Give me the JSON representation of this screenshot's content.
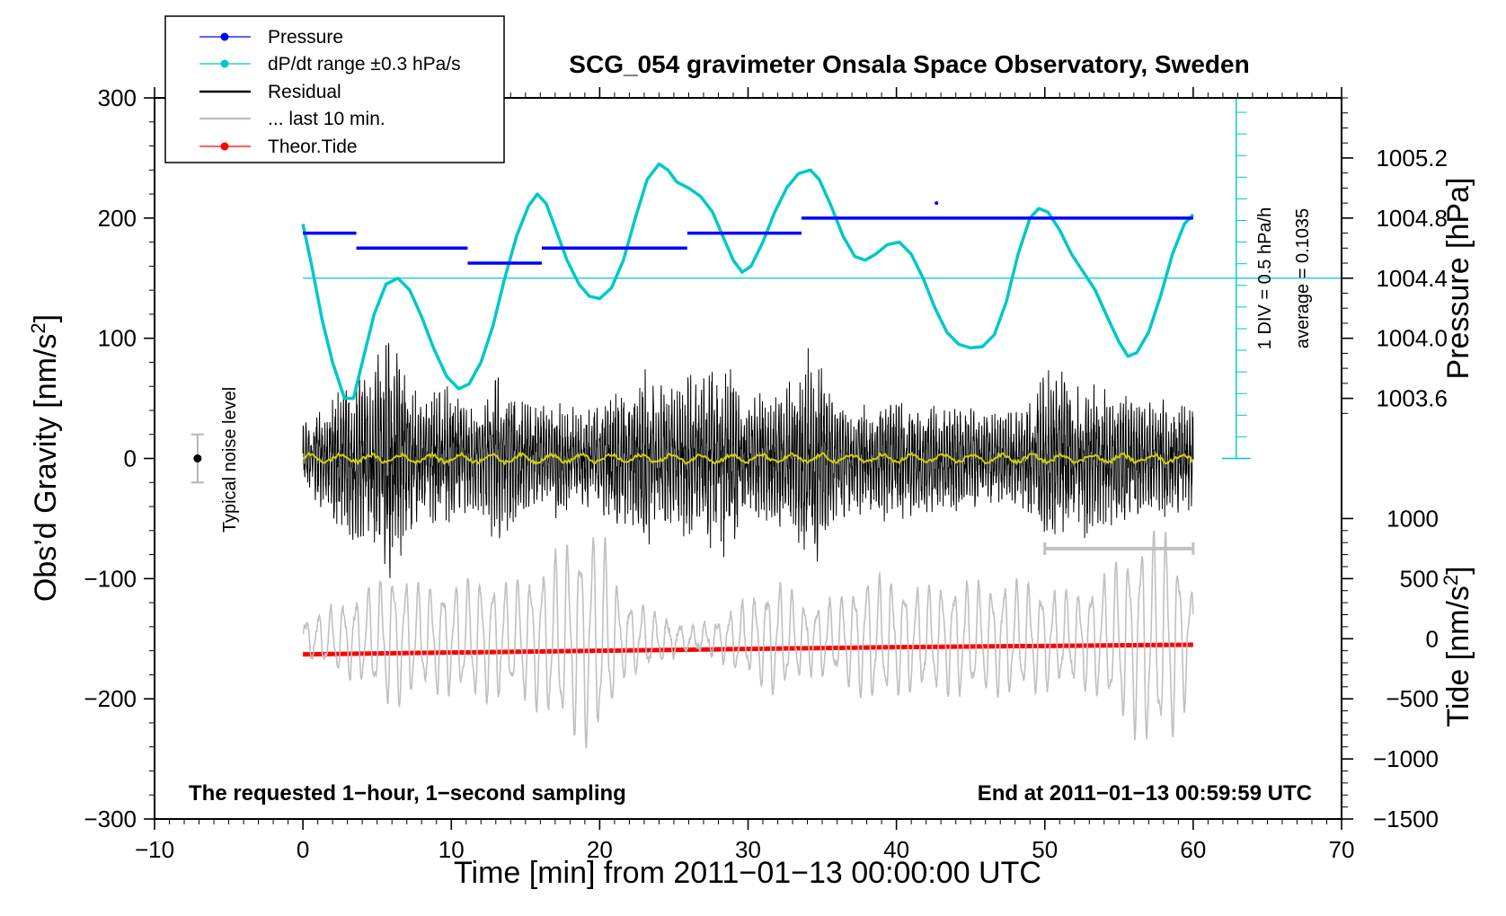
{
  "chart_data": {
    "type": "line",
    "title": "SCG_054 gravimeter Onsala Space Observatory, Sweden",
    "xlabel": "Time [min] from 2011−01−13 00:00:00 UTC",
    "ylabel_left": "Obs’d Gravity [nm/s²]",
    "ylabel_right_top": "Pressure [hPa]",
    "ylabel_right_bottom": "Tide [nm/s²]",
    "xlim": [
      -10,
      70
    ],
    "ylim_left": [
      -300,
      300
    ],
    "x_ticks": [
      -10,
      0,
      10,
      20,
      30,
      40,
      50,
      60,
      70
    ],
    "x_tick_labels": [
      "−10",
      "0",
      "10",
      "20",
      "30",
      "40",
      "50",
      "60",
      "70"
    ],
    "y_left_ticks": [
      -300,
      -200,
      -100,
      0,
      100,
      200,
      300
    ],
    "y_left_tick_labels": [
      "−300",
      "−200",
      "−100",
      "0",
      "100",
      "200",
      "300"
    ],
    "pressure_axis": {
      "ticks": [
        1003.6,
        1004.0,
        1004.4,
        1004.8,
        1005.2
      ],
      "labels": [
        "1003.6",
        "1004.0",
        "1004.4",
        "1004.8",
        "1005.2"
      ],
      "ref": {
        "value": 1004.4,
        "left_y": 150
      },
      "scale_left_per_hpa": 125
    },
    "tide_axis": {
      "ticks": [
        -1500,
        -1000,
        -500,
        0,
        500,
        1000
      ],
      "labels": [
        "−1500",
        "−1000",
        "−500",
        "0",
        "500",
        "1000"
      ],
      "left_y_at_zero": -150,
      "scale_left_per_unit": 0.1
    },
    "legend": {
      "placement": "top-left",
      "entries": [
        {
          "label": "Pressure",
          "color": "#0000ff",
          "style": "line-dot"
        },
        {
          "label": "dP/dt range ±0.3 hPa/s",
          "color": "#00c8c8",
          "style": "line-dot"
        },
        {
          "label": "Residual",
          "color": "#000000",
          "style": "line"
        },
        {
          "label": "... last 10 min.",
          "color": "#c0c0c0",
          "style": "line"
        },
        {
          "label": "Theor.Tide",
          "color": "#ff0000",
          "style": "line-dot"
        }
      ]
    },
    "series": [
      {
        "name": "Pressure",
        "color": "#0000ff",
        "segments": [
          {
            "x": [
              0,
              3.6
            ],
            "value": 1004.7
          },
          {
            "x": [
              3.6,
              11.1
            ],
            "value": 1004.6
          },
          {
            "x": [
              11.1,
              16.1
            ],
            "value": 1004.5
          },
          {
            "x": [
              16.1,
              25.9
            ],
            "value": 1004.6
          },
          {
            "x": [
              25.9,
              33.6
            ],
            "value": 1004.7
          },
          {
            "x": [
              33.6,
              60
            ],
            "value": 1004.8
          }
        ],
        "outlier": {
          "x": 42.7,
          "value": 1004.9
        }
      },
      {
        "name": "dP/dt range ±0.3 hPa/s",
        "color": "#00c8c8",
        "y_unit": "left axis",
        "points": [
          [
            0,
            195
          ],
          [
            0.6,
            160
          ],
          [
            1.3,
            115
          ],
          [
            2,
            80
          ],
          [
            2.8,
            50
          ],
          [
            3.4,
            50
          ],
          [
            4,
            80
          ],
          [
            4.8,
            120
          ],
          [
            5.6,
            145
          ],
          [
            6.4,
            150
          ],
          [
            7.2,
            140
          ],
          [
            8,
            118
          ],
          [
            8.8,
            92
          ],
          [
            9.7,
            68
          ],
          [
            10.5,
            58
          ],
          [
            11.2,
            62
          ],
          [
            12,
            80
          ],
          [
            12.8,
            110
          ],
          [
            13.6,
            150
          ],
          [
            14.4,
            185
          ],
          [
            15.2,
            210
          ],
          [
            15.8,
            220
          ],
          [
            16.4,
            212
          ],
          [
            17,
            192
          ],
          [
            17.8,
            165
          ],
          [
            18.6,
            145
          ],
          [
            19.3,
            135
          ],
          [
            20,
            133
          ],
          [
            20.8,
            142
          ],
          [
            21.6,
            165
          ],
          [
            22.4,
            200
          ],
          [
            23.2,
            232
          ],
          [
            24,
            245
          ],
          [
            24.6,
            240
          ],
          [
            25.2,
            230
          ],
          [
            26,
            225
          ],
          [
            26.8,
            218
          ],
          [
            27.6,
            205
          ],
          [
            28.4,
            182
          ],
          [
            29,
            165
          ],
          [
            29.6,
            155
          ],
          [
            30.2,
            160
          ],
          [
            31,
            180
          ],
          [
            31.8,
            205
          ],
          [
            32.6,
            225
          ],
          [
            33.4,
            237
          ],
          [
            34.2,
            240
          ],
          [
            34.8,
            232
          ],
          [
            35.6,
            210
          ],
          [
            36.4,
            185
          ],
          [
            37.2,
            168
          ],
          [
            37.9,
            165
          ],
          [
            38.6,
            170
          ],
          [
            39.4,
            178
          ],
          [
            40.2,
            180
          ],
          [
            41,
            170
          ],
          [
            41.8,
            150
          ],
          [
            42.6,
            125
          ],
          [
            43.4,
            105
          ],
          [
            44.2,
            95
          ],
          [
            45,
            92
          ],
          [
            45.8,
            93
          ],
          [
            46.6,
            103
          ],
          [
            47.4,
            130
          ],
          [
            48.2,
            170
          ],
          [
            49,
            200
          ],
          [
            49.6,
            208
          ],
          [
            50.2,
            205
          ],
          [
            51,
            190
          ],
          [
            51.8,
            170
          ],
          [
            52.6,
            155
          ],
          [
            53.4,
            140
          ],
          [
            54.2,
            118
          ],
          [
            55,
            97
          ],
          [
            55.6,
            85
          ],
          [
            56.2,
            88
          ],
          [
            57,
            105
          ],
          [
            57.8,
            135
          ],
          [
            58.6,
            170
          ],
          [
            59.4,
            195
          ],
          [
            60,
            203
          ]
        ]
      },
      {
        "name": "Residual",
        "color": "#000000",
        "envelope_nm_s2": [
          [
            0,
            30
          ],
          [
            1,
            40
          ],
          [
            2,
            52
          ],
          [
            3,
            82
          ],
          [
            4,
            70
          ],
          [
            5,
            85
          ],
          [
            5.8,
            110
          ],
          [
            6.8,
            80
          ],
          [
            8,
            45
          ],
          [
            9,
            60
          ],
          [
            10,
            65
          ],
          [
            11,
            45
          ],
          [
            12,
            48
          ],
          [
            13,
            75
          ],
          [
            14,
            62
          ],
          [
            15,
            48
          ],
          [
            16,
            42
          ],
          [
            17,
            55
          ],
          [
            18,
            42
          ],
          [
            19,
            50
          ],
          [
            20,
            45
          ],
          [
            21,
            62
          ],
          [
            22,
            58
          ],
          [
            23,
            80
          ],
          [
            24,
            62
          ],
          [
            25,
            58
          ],
          [
            26,
            75
          ],
          [
            27,
            68
          ],
          [
            28,
            95
          ],
          [
            28.7,
            82
          ],
          [
            29.5,
            60
          ],
          [
            30.5,
            56
          ],
          [
            31.5,
            55
          ],
          [
            32.5,
            65
          ],
          [
            33.5,
            72
          ],
          [
            34.3,
            105
          ],
          [
            34.8,
            82
          ],
          [
            35.5,
            55
          ],
          [
            36.5,
            50
          ],
          [
            37.5,
            48
          ],
          [
            38.5,
            50
          ],
          [
            39.5,
            56
          ],
          [
            40.5,
            52
          ],
          [
            41.5,
            50
          ],
          [
            42.5,
            48
          ],
          [
            43.5,
            46
          ],
          [
            44.5,
            45
          ],
          [
            45.5,
            42
          ],
          [
            46.5,
            42
          ],
          [
            47.5,
            40
          ],
          [
            48.5,
            42
          ],
          [
            49.5,
            62
          ],
          [
            50.5,
            80
          ],
          [
            51.2,
            75
          ],
          [
            52,
            62
          ],
          [
            53,
            72
          ],
          [
            54,
            60
          ],
          [
            55,
            55
          ],
          [
            56,
            52
          ],
          [
            57,
            48
          ],
          [
            58,
            52
          ],
          [
            59,
            48
          ],
          [
            60,
            45
          ]
        ]
      },
      {
        "name": "Residual mean",
        "color": "#d0d000",
        "level": 0
      },
      {
        "name": "... last 10 min.",
        "color": "#c0c0c0",
        "y_unit": "left axis",
        "baseline": -150,
        "amplitude_nm_s2": [
          [
            0,
            15
          ],
          [
            2,
            28
          ],
          [
            4,
            40
          ],
          [
            6,
            60
          ],
          [
            8,
            45
          ],
          [
            10,
            48
          ],
          [
            12,
            55
          ],
          [
            14,
            48
          ],
          [
            16,
            62
          ],
          [
            18,
            85
          ],
          [
            19.5,
            95
          ],
          [
            20.5,
            80
          ],
          [
            21.5,
            35
          ],
          [
            23,
            28
          ],
          [
            25,
            15
          ],
          [
            26.5,
            10
          ],
          [
            28,
            18
          ],
          [
            30,
            35
          ],
          [
            32,
            50
          ],
          [
            34,
            30
          ],
          [
            36,
            35
          ],
          [
            38,
            55
          ],
          [
            40,
            50
          ],
          [
            42,
            45
          ],
          [
            44,
            50
          ],
          [
            46,
            48
          ],
          [
            48,
            50
          ],
          [
            50,
            45
          ],
          [
            52,
            40
          ],
          [
            54,
            55
          ],
          [
            55.5,
            75
          ],
          [
            57,
            95
          ],
          [
            58.5,
            90
          ],
          [
            60,
            40
          ]
        ]
      },
      {
        "name": "Theor.Tide",
        "color": "#ff0000",
        "points": [
          [
            0,
            -163
          ],
          [
            20,
            -160
          ],
          [
            40,
            -157
          ],
          [
            60,
            -155
          ]
        ]
      }
    ],
    "annotations": {
      "noise_label": "Typical noise level",
      "noise_x": -7.1,
      "noise_range": [
        -20,
        20
      ],
      "scale_1": "1 DIV = 0.5 hPa/h",
      "scale_2": "average = 0.1035",
      "note_left": "The requested 1−hour, 1−second sampling",
      "note_right": "End at 2011−01−13 00:59:59 UTC",
      "last10_bracket": [
        50,
        60
      ],
      "last10_level": -75,
      "div_axis_x": 62.9,
      "div_axis_range": [
        0,
        300
      ],
      "div_axis_ticks": [
        0,
        18,
        36,
        54,
        72,
        90,
        108,
        126,
        144,
        162,
        180,
        198,
        216,
        234,
        252,
        270,
        288
      ]
    }
  }
}
